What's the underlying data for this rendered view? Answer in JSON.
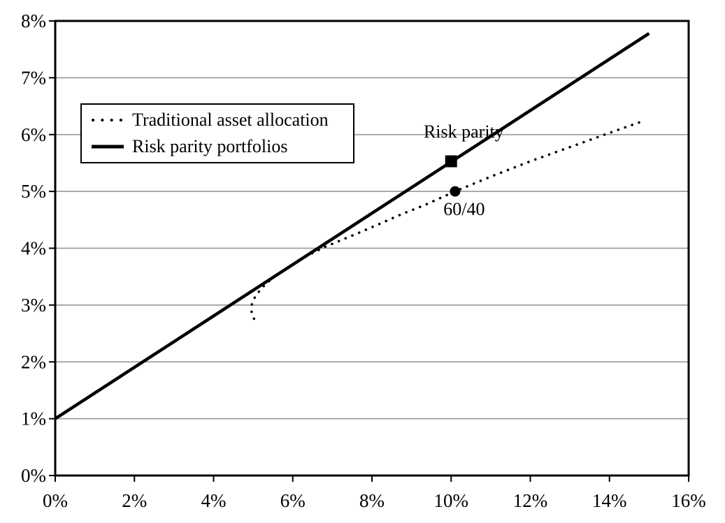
{
  "chart_data": {
    "type": "line",
    "title": "",
    "xlabel": "",
    "ylabel": "",
    "xlim": [
      0,
      16
    ],
    "ylim": [
      0,
      8
    ],
    "grid": "horizontal",
    "legend_position": "upper-left-inside",
    "x_tick_values": [
      0,
      2,
      4,
      6,
      8,
      10,
      12,
      14,
      16
    ],
    "x_ticks": [
      "0%",
      "2%",
      "4%",
      "6%",
      "8%",
      "10%",
      "12%",
      "14%",
      "16%"
    ],
    "y_tick_values": [
      0,
      1,
      2,
      3,
      4,
      5,
      6,
      7,
      8
    ],
    "y_ticks": [
      "0%",
      "1%",
      "2%",
      "3%",
      "4%",
      "5%",
      "6%",
      "7%",
      "8%"
    ],
    "series": [
      {
        "name": "Traditional asset allocation",
        "style": "dotted",
        "color": "#000000",
        "points": [
          [
            5.02,
            2.76
          ],
          [
            4.96,
            2.88
          ],
          [
            4.96,
            3.0
          ],
          [
            5.03,
            3.12
          ],
          [
            5.15,
            3.24
          ],
          [
            5.3,
            3.36
          ],
          [
            5.5,
            3.48
          ],
          [
            5.75,
            3.6
          ],
          [
            6.05,
            3.74
          ],
          [
            6.4,
            3.88
          ],
          [
            6.8,
            4.02
          ],
          [
            7.25,
            4.15
          ],
          [
            7.7,
            4.28
          ],
          [
            8.2,
            4.43
          ],
          [
            8.75,
            4.6
          ],
          [
            9.3,
            4.75
          ],
          [
            10.1,
            5.0
          ],
          [
            11.0,
            5.26
          ],
          [
            12.0,
            5.53
          ],
          [
            13.0,
            5.78
          ],
          [
            14.0,
            6.03
          ],
          [
            14.9,
            6.25
          ]
        ]
      },
      {
        "name": "Risk parity portfolios",
        "style": "solid",
        "color": "#000000",
        "points": [
          [
            0,
            1.0
          ],
          [
            15.0,
            7.78
          ]
        ]
      }
    ],
    "markers": [
      {
        "shape": "square",
        "x": 10.0,
        "y": 5.53,
        "series": "Risk parity portfolios",
        "label": "Risk parity"
      },
      {
        "shape": "circle",
        "x": 10.1,
        "y": 5.0,
        "series": "Traditional asset allocation",
        "label": "60/40"
      }
    ],
    "annotations": [
      {
        "text": "Risk parity",
        "x": 10.32,
        "y": 6.05
      },
      {
        "text": "60/40",
        "x": 10.33,
        "y": 4.68
      }
    ],
    "legend": {
      "items": [
        {
          "label": "Traditional asset allocation",
          "style": "dotted"
        },
        {
          "label": "Risk parity portfolios",
          "style": "solid"
        }
      ]
    },
    "colors": {
      "line": "#000000",
      "grid": "#9e9e9e",
      "background": "#ffffff",
      "text": "#000000"
    }
  }
}
